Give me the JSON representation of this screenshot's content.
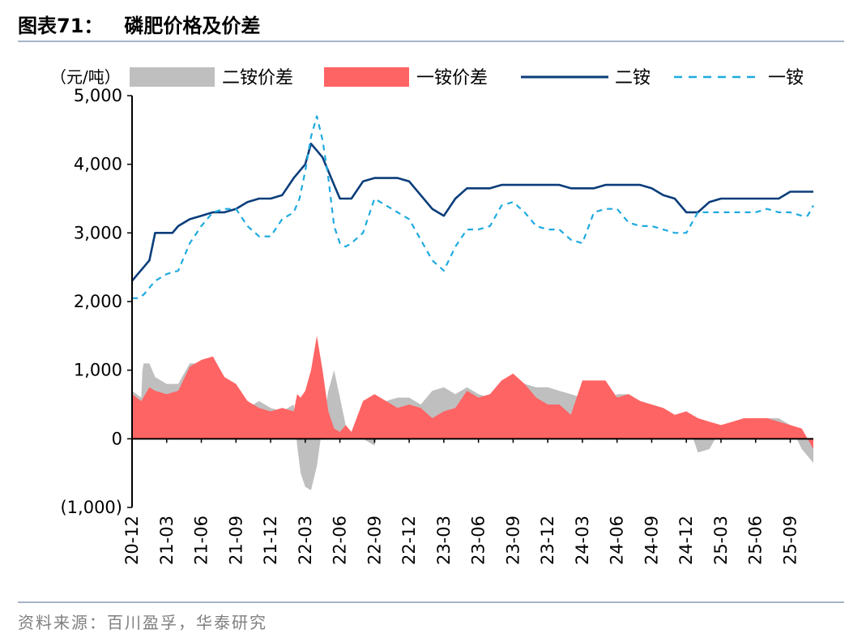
{
  "figure": {
    "number": "图表71：",
    "title": "磷肥价格及价差",
    "source": "资料来源：百川盈孚，华泰研究"
  },
  "chart_data": {
    "type": "line",
    "unit_label": "（元/吨）",
    "ylim": [
      -1000,
      5000
    ],
    "yticks": [
      5000,
      4000,
      3000,
      2000,
      1000,
      0,
      -1000
    ],
    "ytick_labels": [
      "5,000",
      "4,000",
      "3,000",
      "2,000",
      "1,000",
      "0",
      "(1,000)"
    ],
    "x_start": "2020-12",
    "x_end": "2025-11",
    "xtick_labels": [
      "20-12",
      "21-03",
      "21-06",
      "21-09",
      "21-12",
      "22-03",
      "22-06",
      "22-09",
      "22-12",
      "23-03",
      "23-06",
      "23-09",
      "23-12",
      "24-03",
      "24-06",
      "24-09",
      "24-12",
      "25-03",
      "25-06",
      "25-09"
    ],
    "legend_position": "top",
    "series": [
      {
        "name": "二铵价差",
        "kind": "area",
        "color": "#bfbfbf",
        "x": [
          0.0,
          0.8,
          0.9,
          1.0,
          1.5,
          2.0,
          2.5,
          3.0,
          4.0,
          5.0,
          6.0,
          7.0,
          8.0,
          9.0,
          10.0,
          11.0,
          12.0,
          13.0,
          14.0,
          14.3,
          14.6,
          15.0,
          15.5,
          16.0,
          16.5,
          17.0,
          17.5,
          18.0,
          18.5,
          19.0,
          20.0,
          21.0,
          22.0,
          23.0,
          24.0,
          25.0,
          26.0,
          27.0,
          28.0,
          29.0,
          30.0,
          31.0,
          32.0,
          33.0,
          34.0,
          35.0,
          36.0,
          37.0,
          38.0,
          39.0,
          40.0,
          41.0,
          42.0,
          43.0,
          44.0,
          45.0,
          46.0,
          47.0,
          48.0,
          49.0,
          50.0,
          51.0,
          52.0,
          53.0,
          54.0,
          55.0,
          56.0,
          57.0,
          58.0,
          59.0
        ],
        "y": [
          700,
          600,
          1000,
          1100,
          1100,
          900,
          850,
          800,
          800,
          1100,
          1100,
          950,
          650,
          600,
          450,
          550,
          450,
          400,
          500,
          -100,
          -500,
          -700,
          -750,
          -400,
          200,
          700,
          1000,
          600,
          200,
          100,
          0,
          -100,
          550,
          600,
          600,
          500,
          700,
          750,
          650,
          750,
          650,
          600,
          800,
          850,
          800,
          750,
          750,
          700,
          650,
          600,
          550,
          500,
          650,
          650,
          550,
          500,
          400,
          350,
          300,
          -200,
          -150,
          150,
          200,
          250,
          300,
          300,
          300,
          200,
          -150,
          -350
        ]
      },
      {
        "name": "一铵价差",
        "kind": "area",
        "color": "#ff6464",
        "x": [
          0.0,
          0.8,
          1.5,
          2.0,
          3.0,
          4.0,
          5.0,
          6.0,
          7.0,
          8.0,
          9.0,
          10.0,
          11.0,
          12.0,
          13.0,
          14.0,
          14.3,
          14.6,
          15.0,
          15.5,
          16.0,
          16.5,
          17.0,
          17.5,
          18.0,
          18.5,
          19.0,
          20.0,
          21.0,
          22.0,
          23.0,
          24.0,
          25.0,
          26.0,
          27.0,
          28.0,
          29.0,
          30.0,
          31.0,
          32.0,
          33.0,
          34.0,
          35.0,
          36.0,
          37.0,
          38.0,
          39.0,
          40.0,
          41.0,
          42.0,
          43.0,
          44.0,
          45.0,
          46.0,
          47.0,
          48.0,
          49.0,
          50.0,
          51.0,
          52.0,
          53.0,
          54.0,
          55.0,
          56.0,
          57.0,
          58.0,
          58.5,
          59.0
        ],
        "y": [
          650,
          550,
          750,
          700,
          650,
          700,
          1050,
          1150,
          1200,
          900,
          800,
          550,
          450,
          400,
          450,
          400,
          650,
          600,
          700,
          1000,
          1500,
          1000,
          400,
          150,
          100,
          200,
          100,
          550,
          650,
          550,
          450,
          500,
          450,
          300,
          400,
          450,
          700,
          600,
          650,
          850,
          950,
          800,
          600,
          500,
          500,
          350,
          850,
          850,
          850,
          600,
          650,
          550,
          500,
          450,
          350,
          400,
          300,
          250,
          200,
          250,
          300,
          300,
          300,
          250,
          200,
          150,
          0,
          -150
        ]
      },
      {
        "name": "二铵",
        "kind": "line",
        "color": "#0a3d7a",
        "x": [
          0.0,
          0.5,
          1.0,
          1.5,
          2.0,
          3.0,
          3.5,
          4.0,
          4.5,
          5.0,
          6.0,
          7.0,
          8.0,
          9.0,
          10.0,
          11.0,
          12.0,
          13.0,
          14.0,
          15.0,
          15.5,
          16.0,
          16.5,
          17.0,
          17.5,
          18.0,
          19.0,
          20.0,
          21.0,
          22.0,
          23.0,
          24.0,
          25.0,
          26.0,
          27.0,
          28.0,
          29.0,
          30.0,
          31.0,
          32.0,
          33.0,
          34.0,
          35.0,
          36.0,
          37.0,
          38.0,
          39.0,
          40.0,
          41.0,
          42.0,
          43.0,
          44.0,
          45.0,
          46.0,
          47.0,
          48.0,
          49.0,
          50.0,
          51.0,
          52.0,
          53.0,
          54.0,
          55.0,
          56.0,
          57.0,
          58.0,
          59.0
        ],
        "y": [
          2300,
          2400,
          2500,
          2600,
          3000,
          3000,
          3000,
          3100,
          3150,
          3200,
          3250,
          3300,
          3300,
          3350,
          3450,
          3500,
          3500,
          3550,
          3800,
          4000,
          4300,
          4200,
          4100,
          3900,
          3700,
          3500,
          3500,
          3750,
          3800,
          3800,
          3800,
          3750,
          3550,
          3350,
          3250,
          3500,
          3650,
          3650,
          3650,
          3700,
          3700,
          3700,
          3700,
          3700,
          3700,
          3650,
          3650,
          3650,
          3700,
          3700,
          3700,
          3700,
          3650,
          3550,
          3500,
          3300,
          3300,
          3450,
          3500,
          3500,
          3500,
          3500,
          3500,
          3500,
          3600,
          3600,
          3600
        ]
      },
      {
        "name": "一铵",
        "kind": "line",
        "dashed": true,
        "color": "#1eaadf",
        "x": [
          0.0,
          0.5,
          1.0,
          1.5,
          2.0,
          3.0,
          4.0,
          5.0,
          6.0,
          7.0,
          8.0,
          9.0,
          10.0,
          11.0,
          12.0,
          13.0,
          14.0,
          14.5,
          15.0,
          15.5,
          16.0,
          16.5,
          17.0,
          17.5,
          18.0,
          18.5,
          19.0,
          20.0,
          21.0,
          22.0,
          23.0,
          24.0,
          25.0,
          26.0,
          27.0,
          28.0,
          29.0,
          30.0,
          31.0,
          32.0,
          33.0,
          34.0,
          35.0,
          36.0,
          37.0,
          38.0,
          39.0,
          40.0,
          41.0,
          42.0,
          43.0,
          44.0,
          45.0,
          46.0,
          47.0,
          48.0,
          49.0,
          50.0,
          51.0,
          52.0,
          53.0,
          54.0,
          55.0,
          56.0,
          57.0,
          58.0,
          58.5,
          59.0
        ],
        "y": [
          2050,
          2050,
          2100,
          2200,
          2300,
          2400,
          2450,
          2850,
          3100,
          3300,
          3350,
          3350,
          3100,
          2950,
          2950,
          3200,
          3300,
          3500,
          3900,
          4400,
          4700,
          4350,
          3800,
          3100,
          2850,
          2800,
          2850,
          3000,
          3500,
          3400,
          3300,
          3200,
          2900,
          2600,
          2450,
          2800,
          3050,
          3050,
          3100,
          3400,
          3450,
          3300,
          3100,
          3050,
          3050,
          2900,
          2850,
          3300,
          3350,
          3350,
          3150,
          3100,
          3100,
          3050,
          3000,
          3000,
          3300,
          3300,
          3300,
          3300,
          3300,
          3300,
          3350,
          3300,
          3300,
          3250,
          3250,
          3400
        ]
      }
    ]
  }
}
